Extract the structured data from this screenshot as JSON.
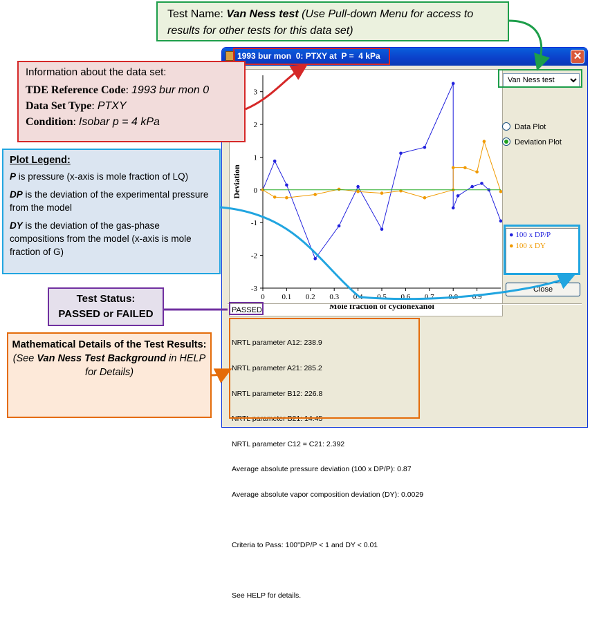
{
  "window": {
    "title": "1993 bur mon  0: PTXY at  P =  4 kPa",
    "close_glyph": "✕"
  },
  "test_select": {
    "value": "Van Ness test"
  },
  "radios": [
    {
      "label": "Data Plot",
      "selected": false
    },
    {
      "label": "Deviation Plot",
      "selected": true
    }
  ],
  "plot_legend": [
    {
      "label": "100 x DP/P",
      "color": "#2222dd"
    },
    {
      "label": "100 x DY",
      "color": "#f09a00"
    }
  ],
  "close_button": "Close",
  "status": "PASSED",
  "details": [
    "NRTL parameter A12: 238.9",
    "NRTL parameter A21: 285.2",
    "NRTL parameter B12: 226.8",
    "NRTL parameter B21: 14.45",
    "NRTL parameter C12 = C21: 2.392",
    "Average absolute pressure deviation (100 x DP/P): 0.87",
    "Average absolute vapor composition deviation (DY): 0.0029",
    "",
    "Criteria to Pass: 100\"DP/P < 1 and DY < 0.01",
    "",
    "See HELP for details."
  ],
  "callouts": {
    "test_name": {
      "label": "Test Name: ",
      "name": "Van Ness test",
      "rest": " (Use Pull-down Menu for access to results for other tests for this data set)"
    },
    "info": {
      "heading": "Information about the data set:",
      "ref_label": "TDE Reference Code",
      "ref_value": "1993 bur mon 0",
      "type_label": "Data Set Type",
      "type_value": "PTXY",
      "cond_label": "Condition",
      "cond_value": "Isobar p = 4 kPa"
    },
    "legend": {
      "title": "Plot Legend:",
      "p_sym": "P",
      "p_text": " is pressure (x-axis is mole fraction of LQ)",
      "dp_sym": "DP",
      "dp_text": " is the deviation of the experimental pressure from the model",
      "dy_sym": "DY",
      "dy_text": " is the deviation of the gas-phase compositions from the model (x-axis is mole fraction of G)"
    },
    "status": {
      "line1": "Test Status:",
      "line2": "PASSED or FAILED"
    },
    "math": {
      "line1": "Mathematical Details of the Test Results:",
      "pre": "(See ",
      "em": "Van Ness Test Background",
      "post": " in HELP for Details)"
    }
  },
  "chart_data": {
    "type": "line",
    "xlabel": "Mole fraction of cyclohexanol",
    "ylabel": "Deviation",
    "xlim": [
      0,
      1
    ],
    "ylim": [
      -3,
      3.5
    ],
    "x_ticks": [
      "0",
      "0.1",
      "0.2",
      "0.3",
      "0.4",
      "0.5",
      "0.6",
      "0.7",
      "0.8",
      "0.9"
    ],
    "y_ticks": [
      "-3",
      "-2",
      "-1",
      "0",
      "1",
      "2",
      "3"
    ],
    "series": [
      {
        "name": "100 x DP/P",
        "color": "#2222dd",
        "points": [
          [
            0,
            0
          ],
          [
            0.05,
            0.88
          ],
          [
            0.1,
            0.15
          ],
          [
            0.22,
            -2.1
          ],
          [
            0.32,
            -1.1
          ],
          [
            0.4,
            0.1
          ],
          [
            0.5,
            -1.2
          ],
          [
            0.58,
            1.12
          ],
          [
            0.68,
            1.3
          ],
          [
            0.8,
            3.25
          ],
          [
            0.8,
            -0.55
          ],
          [
            0.82,
            -0.18
          ],
          [
            0.88,
            0.1
          ],
          [
            0.92,
            0.2
          ],
          [
            0.95,
            0.0
          ],
          [
            1.0,
            -0.95
          ]
        ]
      },
      {
        "name": "100 x DY",
        "color": "#f09a00",
        "points": [
          [
            0,
            0
          ],
          [
            0.05,
            -0.22
          ],
          [
            0.1,
            -0.24
          ],
          [
            0.22,
            -0.14
          ],
          [
            0.32,
            0.02
          ],
          [
            0.4,
            -0.05
          ],
          [
            0.5,
            -0.1
          ],
          [
            0.58,
            -0.03
          ],
          [
            0.68,
            -0.24
          ],
          [
            0.8,
            0.0
          ],
          [
            0.8,
            0.68
          ],
          [
            0.85,
            0.68
          ],
          [
            0.9,
            0.55
          ],
          [
            0.93,
            1.48
          ],
          [
            1.0,
            -0.05
          ]
        ]
      },
      {
        "name": "zero",
        "color": "#22aa22",
        "points": [
          [
            0,
            0
          ],
          [
            1,
            0
          ]
        ]
      }
    ],
    "grid": false
  }
}
